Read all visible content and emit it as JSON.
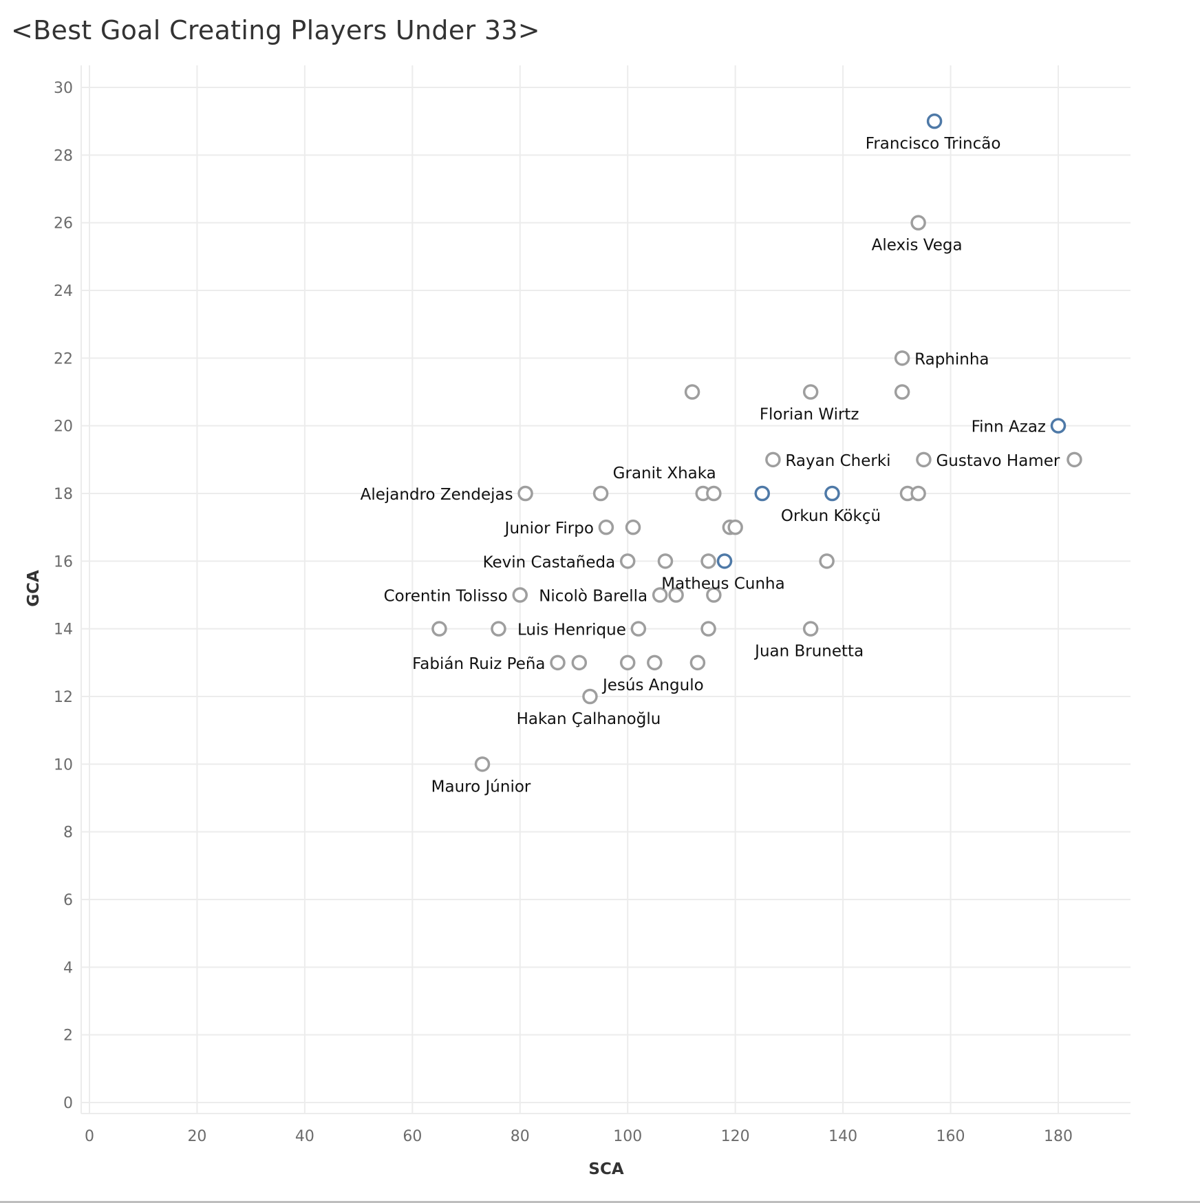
{
  "chart_data": {
    "type": "scatter",
    "title": "<Best  Goal Creating Players Under 33>",
    "xlabel": "SCA",
    "ylabel": "GCA",
    "xlim": [
      0,
      193
    ],
    "ylim": [
      0,
      30
    ],
    "xticks": [
      0,
      20,
      40,
      60,
      80,
      100,
      120,
      140,
      160,
      180
    ],
    "yticks": [
      0,
      2,
      4,
      6,
      8,
      10,
      12,
      14,
      16,
      18,
      20,
      22,
      24,
      26,
      28,
      30
    ],
    "grid": true,
    "colors": {
      "default": "#9e9e9e",
      "highlight": "#4e79a7"
    },
    "points": [
      {
        "x": 157,
        "y": 29,
        "label": "Francisco Trincão",
        "highlight": true
      },
      {
        "x": 154,
        "y": 26,
        "label": "Alexis Vega",
        "highlight": false
      },
      {
        "x": 151,
        "y": 22,
        "label": "Raphinha",
        "highlight": false
      },
      {
        "x": 112,
        "y": 21,
        "label": "",
        "highlight": false
      },
      {
        "x": 134,
        "y": 21,
        "label": "Florian Wirtz",
        "highlight": false
      },
      {
        "x": 151,
        "y": 21,
        "label": "",
        "highlight": false
      },
      {
        "x": 180,
        "y": 20,
        "label": "Finn Azaz",
        "highlight": true
      },
      {
        "x": 127,
        "y": 19,
        "label": "Rayan Cherki",
        "highlight": false
      },
      {
        "x": 155,
        "y": 19,
        "label": "Gustavo Hamer",
        "highlight": false
      },
      {
        "x": 183,
        "y": 19,
        "label": "",
        "highlight": false
      },
      {
        "x": 81,
        "y": 18,
        "label": "Alejandro Zendejas",
        "highlight": false
      },
      {
        "x": 95,
        "y": 18,
        "label": "",
        "highlight": false
      },
      {
        "x": 114,
        "y": 18,
        "label": "Granit Xhaka",
        "highlight": false
      },
      {
        "x": 116,
        "y": 18,
        "label": "",
        "highlight": false
      },
      {
        "x": 125,
        "y": 18,
        "label": "",
        "highlight": true
      },
      {
        "x": 138,
        "y": 18,
        "label": "Orkun Kökçü",
        "highlight": true
      },
      {
        "x": 152,
        "y": 18,
        "label": "",
        "highlight": false
      },
      {
        "x": 154,
        "y": 18,
        "label": "",
        "highlight": false
      },
      {
        "x": 96,
        "y": 17,
        "label": "Junior Firpo",
        "highlight": false
      },
      {
        "x": 101,
        "y": 17,
        "label": "",
        "highlight": false
      },
      {
        "x": 119,
        "y": 17,
        "label": "",
        "highlight": false
      },
      {
        "x": 120,
        "y": 17,
        "label": "",
        "highlight": false
      },
      {
        "x": 100,
        "y": 16,
        "label": "Kevin Castañeda",
        "highlight": false
      },
      {
        "x": 107,
        "y": 16,
        "label": "",
        "highlight": false
      },
      {
        "x": 115,
        "y": 16,
        "label": "",
        "highlight": false
      },
      {
        "x": 118,
        "y": 16,
        "label": "Matheus Cunha",
        "highlight": true
      },
      {
        "x": 137,
        "y": 16,
        "label": "",
        "highlight": false
      },
      {
        "x": 80,
        "y": 15,
        "label": "Corentin Tolisso",
        "highlight": false
      },
      {
        "x": 106,
        "y": 15,
        "label": "Nicolò Barella",
        "highlight": false
      },
      {
        "x": 109,
        "y": 15,
        "label": "",
        "highlight": false
      },
      {
        "x": 116,
        "y": 15,
        "label": "",
        "highlight": false
      },
      {
        "x": 65,
        "y": 14,
        "label": "",
        "highlight": false
      },
      {
        "x": 76,
        "y": 14,
        "label": "",
        "highlight": false
      },
      {
        "x": 102,
        "y": 14,
        "label": "Luis Henrique",
        "highlight": false
      },
      {
        "x": 115,
        "y": 14,
        "label": "",
        "highlight": false
      },
      {
        "x": 134,
        "y": 14,
        "label": "Juan Brunetta",
        "highlight": false
      },
      {
        "x": 87,
        "y": 13,
        "label": "Fabián Ruiz Peña",
        "highlight": false
      },
      {
        "x": 91,
        "y": 13,
        "label": "",
        "highlight": false
      },
      {
        "x": 100,
        "y": 13,
        "label": "",
        "highlight": false
      },
      {
        "x": 105,
        "y": 13,
        "label": "Jesús Angulo",
        "highlight": false
      },
      {
        "x": 113,
        "y": 13,
        "label": "",
        "highlight": false
      },
      {
        "x": 93,
        "y": 12,
        "label": "Hakan Çalhanoğlu",
        "highlight": false
      },
      {
        "x": 73,
        "y": 10,
        "label": "Mauro Júnior",
        "highlight": false
      }
    ]
  }
}
